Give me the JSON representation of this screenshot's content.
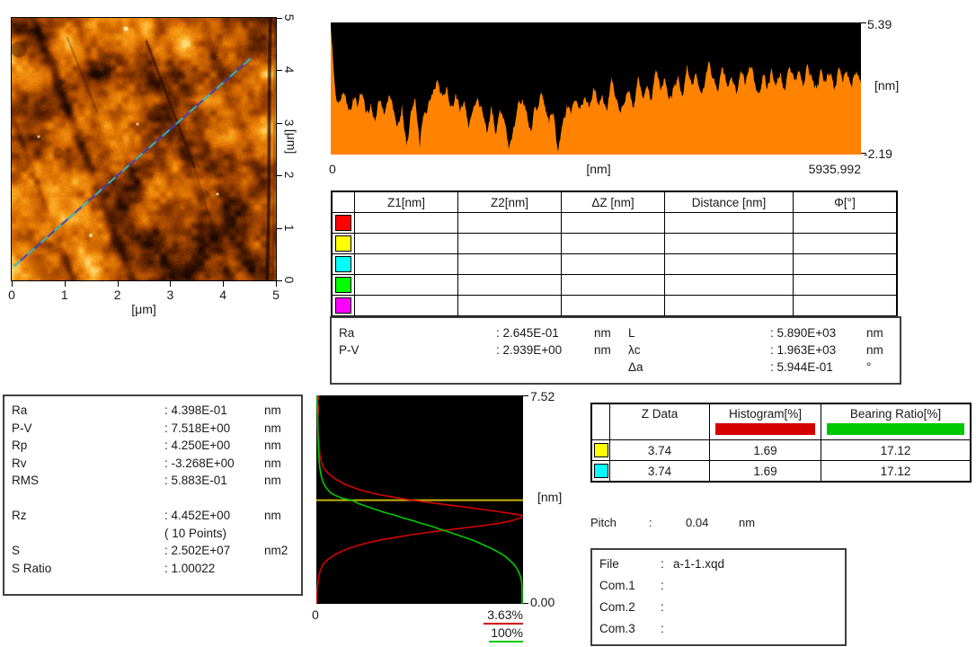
{
  "colors": {
    "profile_fill": "#FF8300",
    "plot_bg": "#000000",
    "hist_red": "#D40000",
    "bearing_green": "#00C800",
    "marker_yellow": "#C8B400",
    "cursor_red": "#FF0000",
    "cursor_yellow": "#FFFF00",
    "cursor_cyan": "#00FFFF",
    "cursor_green": "#00FF00",
    "cursor_magenta": "#FF00FF",
    "afm_line_blue": "#2B3FD0",
    "afm_line_cyan": "#2FD0C8"
  },
  "afm_panel": {
    "x_ticks": [
      "0",
      "1",
      "2",
      "3",
      "4",
      "5"
    ],
    "y_ticks": [
      "0",
      "1",
      "2",
      "3",
      "4",
      "5"
    ],
    "x_unit": "[μm]",
    "y_unit": "[μm]"
  },
  "profile_panel": {
    "y_max_label": "5.39",
    "y_min_label": "-2.19",
    "y_unit": "[nm]",
    "x_min_label": "0",
    "x_unit": "[nm]",
    "x_max_label": "5935.992"
  },
  "cursor_table": {
    "headers": [
      "",
      "Z1[nm]",
      "Z2[nm]",
      "ΔZ [nm]",
      "Distance [nm]",
      "Φ[°]"
    ],
    "row_colors": [
      "#FF0000",
      "#FFFF00",
      "#00FFFF",
      "#00FF00",
      "#FF00FF"
    ]
  },
  "line_stats": {
    "left": [
      {
        "label": "Ra",
        "value": ": 2.645E-01",
        "unit": "nm"
      },
      {
        "label": "P-V",
        "value": ": 2.939E+00",
        "unit": "nm"
      }
    ],
    "right": [
      {
        "label": "L",
        "value": ": 5.890E+03",
        "unit": "nm"
      },
      {
        "label": "λc",
        "value": ": 1.963E+03",
        "unit": "nm"
      },
      {
        "label": "Δa",
        "value": ": 5.944E-01",
        "unit": "°"
      }
    ]
  },
  "area_stats": {
    "rows": [
      {
        "label": "Ra",
        "value": ": 4.398E-01",
        "unit": "nm"
      },
      {
        "label": "P-V",
        "value": ": 7.518E+00",
        "unit": "nm"
      },
      {
        "label": "Rp",
        "value": ": 4.250E+00",
        "unit": "nm"
      },
      {
        "label": "Rv",
        "value": ": -3.268E+00",
        "unit": "nm"
      },
      {
        "label": "RMS",
        "value": ": 5.883E-01",
        "unit": "nm"
      },
      {
        "label": "",
        "value": "",
        "unit": ""
      },
      {
        "label": "Rz",
        "value": ": 4.452E+00",
        "unit": "nm"
      },
      {
        "label": "",
        "value": "( 10 Points)",
        "unit": ""
      },
      {
        "label": "S",
        "value": ": 2.502E+07",
        "unit": "nm2"
      },
      {
        "label": "S Ratio",
        "value": ": 1.00022",
        "unit": ""
      }
    ]
  },
  "histogram_panel": {
    "y_max_label": "7.52",
    "y_min_label": "0.00",
    "y_unit": "[nm]",
    "x_min_label": "0",
    "hist_max_label": "3.63%",
    "bearing_max_label": "100%"
  },
  "zdata_table": {
    "headers": [
      "",
      "Z Data",
      "Histogram[%]",
      "Bearing Ratio[%]"
    ],
    "rows": [
      {
        "color": "#FFFF00",
        "values": [
          "3.74",
          "1.69",
          "17.12"
        ]
      },
      {
        "color": "#00FFFF",
        "values": [
          "3.74",
          "1.69",
          "17.12"
        ]
      }
    ]
  },
  "pitch": {
    "label": "Pitch",
    "colon": ":",
    "value": "0.04",
    "unit": "nm"
  },
  "file_info": {
    "rows": [
      {
        "label": "File",
        "colon": ":",
        "value": "a-1-1.xqd"
      },
      {
        "label": "Com.1",
        "colon": ":",
        "value": ""
      },
      {
        "label": "Com.2",
        "colon": ":",
        "value": ""
      },
      {
        "label": "Com.3",
        "colon": ":",
        "value": ""
      }
    ]
  },
  "chart_data": [
    {
      "type": "heatmap",
      "name": "afm-topography-image",
      "xlabel": "[μm]",
      "ylabel": "[μm]",
      "x_range": [
        0,
        5
      ],
      "y_range": [
        0,
        5
      ],
      "colormap": "amber (dark brown → orange → pale yellow)",
      "features": [
        "blue/cyan profile section line from (0.05, 0.27) μm to (4.52, 4.23) μm",
        "dark near-vertical scratch at x ≈ 4.65 μm running full height",
        "dark diagonal scratch from ≈(2.55, 4.55) μm to ≈(3.25, 2.55) μm",
        "fine diagonal grain texture with bright specks"
      ]
    },
    {
      "type": "area",
      "name": "line-profile",
      "xlabel": "[nm]",
      "ylabel": "[nm]",
      "x_range": [
        0,
        5935.992
      ],
      "ylim": [
        -2.19,
        5.39
      ],
      "fill_color": "#FF8300",
      "bg": "#000000",
      "z_values": [
        5.2,
        1.6,
        0.9,
        1.4,
        0.3,
        1.1,
        0.5,
        1.3,
        0.2,
        0.8,
        -0.3,
        0.9,
        0.1,
        1.2,
        0.4,
        -0.5,
        0.7,
        -1.7,
        0.3,
        1.0,
        -1.8,
        0.2,
        0.9,
        1.5,
        2.1,
        1.2,
        1.7,
        0.6,
        1.3,
        0.2,
        0.9,
        -0.7,
        0.5,
        1.1,
        0.3,
        -0.9,
        0.6,
        -1.0,
        0.4,
        -0.3,
        -1.9,
        -0.6,
        0.8,
        1.0,
        0.3,
        -0.8,
        0.5,
        1.2,
        0.6,
        -0.4,
        0.2,
        -2.0,
        -0.5,
        0.7,
        0.1,
        0.9,
        0.4,
        1.1,
        0.5,
        1.66,
        0.8,
        1.2,
        0.3,
        2.25,
        1.0,
        0.2,
        0.8,
        1.4,
        0.5,
        2.3,
        1.1,
        1.8,
        0.9,
        2.7,
        1.5,
        2.2,
        1.0,
        1.7,
        2.4,
        1.2,
        3.0,
        1.8,
        2.5,
        1.4,
        2.0,
        3.1,
        2.2,
        1.5,
        2.8,
        1.7,
        2.3,
        1.3,
        2.6,
        1.8,
        2.9,
        2.0,
        1.4,
        2.4,
        1.6,
        2.8,
        1.9,
        2.5,
        1.5,
        2.9,
        2.1,
        2.6,
        1.7,
        3.0,
        2.2,
        1.6,
        2.7,
        2.0,
        2.4,
        1.5,
        2.8,
        2.0,
        2.3,
        1.7,
        2.6,
        1.9
      ]
    },
    {
      "type": "line",
      "name": "height-histogram-and-bearing-ratio",
      "ylabel": "[nm]",
      "ylim": [
        0,
        7.52
      ],
      "bg": "#000000",
      "marker_line": {
        "z": 3.74,
        "color": "#C8B400"
      },
      "series": [
        {
          "name": "Histogram[%]",
          "color": "#D40000",
          "x_max_pct": 3.63,
          "points_z_pct": [
            [
              7.52,
              0.05
            ],
            [
              7.3,
              0.02
            ],
            [
              7.0,
              0.04
            ],
            [
              6.6,
              0.02
            ],
            [
              6.2,
              0.03
            ],
            [
              5.8,
              0.05
            ],
            [
              5.4,
              0.06
            ],
            [
              5.1,
              0.09
            ],
            [
              4.9,
              0.13
            ],
            [
              4.7,
              0.21
            ],
            [
              4.5,
              0.34
            ],
            [
              4.3,
              0.52
            ],
            [
              4.1,
              0.78
            ],
            [
              3.95,
              1.08
            ],
            [
              3.85,
              1.35
            ],
            [
              3.74,
              1.69
            ],
            [
              3.6,
              2.2
            ],
            [
              3.5,
              2.6
            ],
            [
              3.4,
              2.95
            ],
            [
              3.3,
              3.3
            ],
            [
              3.2,
              3.63
            ],
            [
              3.1,
              3.6
            ],
            [
              3.0,
              3.45
            ],
            [
              2.9,
              3.2
            ],
            [
              2.8,
              2.85
            ],
            [
              2.7,
              2.45
            ],
            [
              2.6,
              2.05
            ],
            [
              2.5,
              1.7
            ],
            [
              2.4,
              1.4
            ],
            [
              2.3,
              1.12
            ],
            [
              2.2,
              0.9
            ],
            [
              2.1,
              0.72
            ],
            [
              2.0,
              0.57
            ],
            [
              1.9,
              0.45
            ],
            [
              1.8,
              0.35
            ],
            [
              1.7,
              0.27
            ],
            [
              1.6,
              0.2
            ],
            [
              1.5,
              0.15
            ],
            [
              1.4,
              0.11
            ],
            [
              1.2,
              0.07
            ],
            [
              1.0,
              0.04
            ],
            [
              0.8,
              0.03
            ],
            [
              0.6,
              0.02
            ],
            [
              0.4,
              0.01
            ],
            [
              0.2,
              0.01
            ],
            [
              0.0,
              0.0
            ]
          ]
        },
        {
          "name": "Bearing Ratio[%]",
          "color": "#00C800",
          "x_max_pct": 100,
          "points_z_pct": [
            [
              7.52,
              0.4
            ],
            [
              7.0,
              0.55
            ],
            [
              6.5,
              0.7
            ],
            [
              6.0,
              0.85
            ],
            [
              5.6,
              1.0
            ],
            [
              5.2,
              1.3
            ],
            [
              4.9,
              1.7
            ],
            [
              4.6,
              2.4
            ],
            [
              4.4,
              3.2
            ],
            [
              4.2,
              4.6
            ],
            [
              4.0,
              7.0
            ],
            [
              3.9,
              9.5
            ],
            [
              3.8,
              13.0
            ],
            [
              3.74,
              17.12
            ],
            [
              3.6,
              21.0
            ],
            [
              3.5,
              25.0
            ],
            [
              3.4,
              29.0
            ],
            [
              3.3,
              33.0
            ],
            [
              3.2,
              38.0
            ],
            [
              3.1,
              42.0
            ],
            [
              3.0,
              47.0
            ],
            [
              2.9,
              51.0
            ],
            [
              2.8,
              56.0
            ],
            [
              2.7,
              60.0
            ],
            [
              2.6,
              64.0
            ],
            [
              2.5,
              68.0
            ],
            [
              2.4,
              72.0
            ],
            [
              2.3,
              76.0
            ],
            [
              2.2,
              79.0
            ],
            [
              2.1,
              82.0
            ],
            [
              2.0,
              85.0
            ],
            [
              1.9,
              87.5
            ],
            [
              1.8,
              90.0
            ],
            [
              1.7,
              92.0
            ],
            [
              1.6,
              93.5
            ],
            [
              1.5,
              95.0
            ],
            [
              1.4,
              96.2
            ],
            [
              1.3,
              97.2
            ],
            [
              1.2,
              98.0
            ],
            [
              1.1,
              98.6
            ],
            [
              1.0,
              99.1
            ],
            [
              0.9,
              99.5
            ],
            [
              0.8,
              99.7
            ],
            [
              0.7,
              99.85
            ],
            [
              0.6,
              99.93
            ],
            [
              0.5,
              99.97
            ],
            [
              0.4,
              100.0
            ],
            [
              0.2,
              100.0
            ],
            [
              0.0,
              100.0
            ]
          ]
        }
      ]
    }
  ]
}
